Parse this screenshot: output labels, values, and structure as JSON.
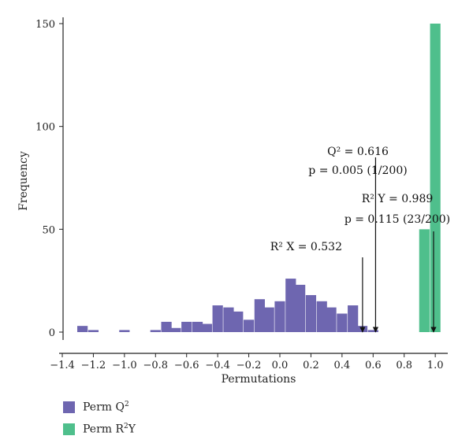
{
  "chart_data": {
    "type": "bar",
    "xlabel": "Permutations",
    "ylabel": "Frequency",
    "xlim": [
      -1.4,
      1.05
    ],
    "ylim": [
      0,
      150
    ],
    "xticks": [
      -1.4,
      -1.2,
      -1.0,
      -0.8,
      -0.6,
      -0.4,
      -0.2,
      0.0,
      0.2,
      0.4,
      0.6,
      0.8,
      1.0
    ],
    "xtick_labels": [
      "−1.4",
      "−1.2",
      "−1.0",
      "−0.8",
      "−0.6",
      "−0.4",
      "−0.2",
      "0.0",
      "0.2",
      "0.4",
      "0.6",
      "0.8",
      "1.0"
    ],
    "yticks": [
      0,
      50,
      100,
      150
    ],
    "ytick_labels": [
      "0",
      "50",
      "100",
      "150"
    ],
    "bin_width": 0.067,
    "series": [
      {
        "name": "Perm Q2",
        "color": "#6e66b0",
        "bin_centers": [
          -1.27,
          -1.2,
          -1.0,
          -0.8,
          -0.73,
          -0.67,
          -0.6,
          -0.53,
          -0.47,
          -0.4,
          -0.33,
          -0.27,
          -0.2,
          -0.13,
          -0.07,
          0.0,
          0.07,
          0.13,
          0.2,
          0.27,
          0.33,
          0.4,
          0.47,
          0.53,
          0.6,
          0.67
        ],
        "values": [
          3,
          1,
          1,
          1,
          5,
          2,
          5,
          5,
          4,
          13,
          12,
          10,
          6,
          16,
          12,
          15,
          26,
          23,
          18,
          15,
          12,
          9,
          13,
          3,
          1,
          0
        ]
      },
      {
        "name": "Perm R2Y",
        "color": "#4fbf8c",
        "bin_centers": [
          0.93,
          1.0
        ],
        "values": [
          50,
          150
        ]
      }
    ],
    "markers": [
      {
        "x": 0.532,
        "label_lines": [
          "R² X = 0.532"
        ]
      },
      {
        "x": 0.616,
        "label_lines": [
          "Q² = 0.616",
          "p = 0.005 (1/200)"
        ]
      },
      {
        "x": 0.989,
        "label_lines": [
          "R² Y = 0.989",
          "p = 0.115 (23/200)"
        ]
      }
    ],
    "legend": [
      {
        "label_main": "Perm Q",
        "label_sup": "2",
        "label_tail": "",
        "color": "#6e66b0"
      },
      {
        "label_main": "Perm R",
        "label_sup": "2",
        "label_tail": "Y",
        "color": "#4fbf8c"
      }
    ],
    "legend_position": "bottom-left",
    "grid": false
  }
}
